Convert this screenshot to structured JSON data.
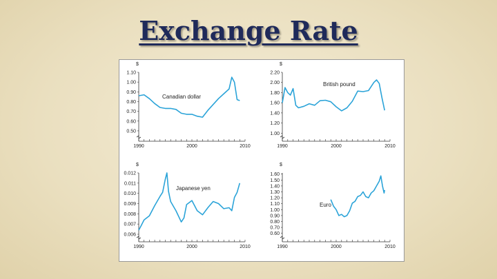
{
  "slide": {
    "title": "Exchange Rate"
  },
  "colors": {
    "line": "#2aa3d8",
    "axis": "#333333",
    "title": "#1f2a5a"
  },
  "chart_data": [
    {
      "type": "line",
      "title": "",
      "series_label": "Canadian dollar",
      "unit": "$",
      "xlim": [
        1990,
        2010
      ],
      "ylim": [
        0.45,
        1.1
      ],
      "x_ticks": [
        "1990",
        "2000",
        "2010"
      ],
      "y_ticks": [
        "0.50",
        "0.60",
        "0.70",
        "0.80",
        "0.90",
        "1.00",
        "1.10"
      ],
      "x": [
        1990,
        1991,
        1992,
        1993,
        1994,
        1995,
        1996,
        1997,
        1998,
        1999,
        2000,
        2001,
        2002,
        2003,
        2004,
        2005,
        2006,
        2007,
        2007.5,
        2008,
        2008.5,
        2009
      ],
      "values": [
        0.86,
        0.87,
        0.83,
        0.78,
        0.74,
        0.73,
        0.73,
        0.72,
        0.68,
        0.67,
        0.67,
        0.65,
        0.64,
        0.71,
        0.77,
        0.83,
        0.88,
        0.93,
        1.05,
        1.0,
        0.82,
        0.81
      ]
    },
    {
      "type": "line",
      "title": "",
      "series_label": "British pound",
      "unit": "$",
      "xlim": [
        1990,
        2010
      ],
      "ylim": [
        0.95,
        2.2
      ],
      "x_ticks": [
        "1990",
        "2000",
        "2010"
      ],
      "y_ticks": [
        "1.00",
        "1.20",
        "1.40",
        "1.60",
        "1.80",
        "2.00",
        "2.20"
      ],
      "x": [
        1990,
        1990.5,
        1991,
        1991.5,
        1992,
        1992.5,
        1993,
        1994,
        1995,
        1996,
        1997,
        1998,
        1999,
        2000,
        2001,
        2002,
        2003,
        2004,
        2005,
        2006,
        2007,
        2007.5,
        2008,
        2008.5,
        2009
      ],
      "values": [
        1.6,
        1.9,
        1.8,
        1.75,
        1.88,
        1.55,
        1.5,
        1.53,
        1.58,
        1.55,
        1.64,
        1.65,
        1.62,
        1.52,
        1.44,
        1.5,
        1.63,
        1.83,
        1.82,
        1.84,
        2.0,
        2.05,
        1.98,
        1.7,
        1.45
      ]
    },
    {
      "type": "line",
      "title": "",
      "series_label": "Japanese yen",
      "unit": "$",
      "xlim": [
        1990,
        2010
      ],
      "ylim": [
        0.0058,
        0.012
      ],
      "x_ticks": [
        "1990",
        "2000",
        "2010"
      ],
      "y_ticks": [
        "0.006",
        "0.007",
        "0.008",
        "0.009",
        "0.010",
        "0.011",
        "0.012"
      ],
      "x": [
        1990,
        1990.5,
        1991,
        1992,
        1993,
        1994,
        1994.5,
        1995,
        1995.3,
        1995.6,
        1996,
        1997,
        1998,
        1998.5,
        1999,
        2000,
        2001,
        2002,
        2003,
        2004,
        2005,
        2006,
        2007,
        2007.5,
        2008,
        2008.5,
        2009
      ],
      "values": [
        0.0064,
        0.0069,
        0.0074,
        0.0078,
        0.0088,
        0.0097,
        0.0101,
        0.0114,
        0.012,
        0.0102,
        0.0092,
        0.0083,
        0.0072,
        0.0076,
        0.0089,
        0.0093,
        0.0083,
        0.0079,
        0.0086,
        0.0092,
        0.009,
        0.0085,
        0.0086,
        0.0083,
        0.0096,
        0.0101,
        0.011
      ]
    },
    {
      "type": "line",
      "title": "",
      "series_label": "Euro",
      "unit": "$",
      "xlim": [
        1990,
        2010
      ],
      "ylim": [
        0.55,
        1.62
      ],
      "x_ticks": [
        "1990",
        "2000",
        "2010"
      ],
      "y_ticks": [
        "0.60",
        "0.70",
        "0.80",
        "0.90",
        "1.00",
        "1.10",
        "1.20",
        "1.30",
        "1.40",
        "1.50",
        "1.60"
      ],
      "x": [
        1999,
        1999.5,
        2000,
        2000.5,
        2001,
        2001.5,
        2002,
        2002.5,
        2003,
        2003.5,
        2004,
        2004.5,
        2005,
        2005.5,
        2006,
        2006.5,
        2007,
        2007.5,
        2008,
        2008.3,
        2008.6,
        2008.9,
        2009
      ],
      "values": [
        1.17,
        1.06,
        1.0,
        0.9,
        0.92,
        0.88,
        0.9,
        0.98,
        1.11,
        1.14,
        1.22,
        1.24,
        1.3,
        1.22,
        1.2,
        1.28,
        1.32,
        1.4,
        1.48,
        1.57,
        1.4,
        1.28,
        1.33
      ]
    }
  ]
}
